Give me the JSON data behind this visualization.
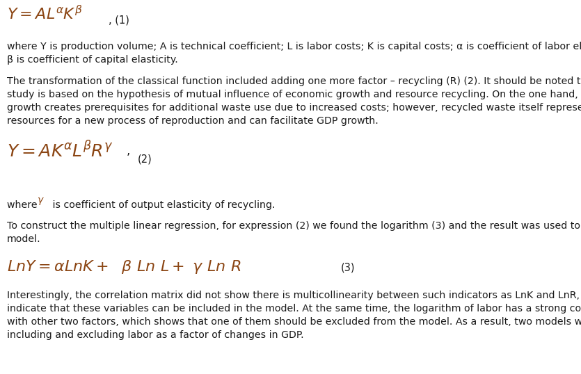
{
  "bg_color": "#ffffff",
  "text_color": "#1a1a1a",
  "eq_color": "#8B4513",
  "figsize": [
    8.35,
    5.38
  ],
  "dpi": 100,
  "eq1_latex": "$Y = AL^{\\alpha}K^{\\beta}$",
  "eq1_label": ", (1)",
  "eq2_latex": "$Y = AK^{\\alpha}L^{\\beta}R^{\\gamma}$",
  "eq2_suffix": ",",
  "eq2_label": "(2)",
  "eq3_latex": "$LnY = \\alpha LnK +\\ \\ \\beta\\ Ln\\ L +\\ \\gamma\\ Ln\\ R$",
  "eq3_label": "(3)",
  "para1": "where Y is production volume; A is technical coefficient; L is labor costs; K is capital costs; α is coefficient of labor elasticity;\nβ is coefficient of capital elasticity.",
  "para2": "The transformation of the classical function included adding one more factor – recycling (R) (2). It should be noted that this\nstudy is based on the hypothesis of mutual influence of economic growth and resource recycling. On the one hand, economic\ngrowth creates prerequisites for additional waste use due to increased costs; however, recycled waste itself represents\nresources for a new process of reproduction and can facilitate GDP growth.",
  "para3_prefix": "where ",
  "para3_gamma": "$\\gamma$",
  "para3_suffix": " is coefficient of output elasticity of recycling.",
  "para4": "To construct the multiple linear regression, for expression (2) we found the logarithm (3) and the result was used to build the\nmodel.",
  "para5": "Interestingly, the correlation matrix did not show there is multicollinearity between such indicators as LnK and LnR, which may\nindicate that these variables can be included in the model. At the same time, the logarithm of labor has a strong correlation\nwith other two factors, which shows that one of them should be excluded from the model. As a result, two models were built:\nincluding and excluding labor as a factor of changes in GDP."
}
